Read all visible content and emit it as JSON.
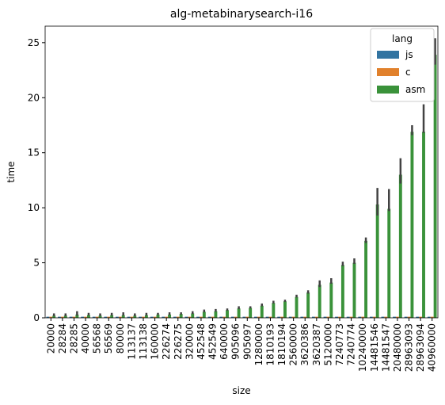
{
  "chart_data": {
    "type": "bar",
    "title": "alg-metabinarysearch-i16",
    "x_label": "size",
    "y_label": "time",
    "categories": [
      "20000",
      "28284",
      "28285",
      "40000",
      "56568",
      "56569",
      "80000",
      "113137",
      "113138",
      "160000",
      "226274",
      "226275",
      "320000",
      "452548",
      "452549",
      "640000",
      "905096",
      "905097",
      "1280000",
      "1810193",
      "1810194",
      "2560000",
      "3620386",
      "3620387",
      "5120000",
      "7240773",
      "7240774",
      "10240000",
      "14481546",
      "14481547",
      "20480000",
      "28963093",
      "28963094",
      "40960000"
    ],
    "legend_title": "lang",
    "legend_position": "upper right",
    "series": [
      {
        "name": "js",
        "color": "#3274a1",
        "values": [
          0.1,
          0.1,
          0.1,
          0.1,
          0.1,
          0.1,
          0.1,
          0.1,
          0.1,
          0.1,
          0.1,
          0.1,
          0.1,
          0.1,
          0.1,
          0.1,
          0.1,
          0.1,
          0.1,
          0.1,
          0.1,
          0.1,
          0.1,
          0.1,
          0.1,
          0.1,
          0.1,
          0.1,
          0.1,
          0.1,
          0.1,
          0.1,
          0.1,
          0.1
        ]
      },
      {
        "name": "c",
        "color": "#e1812c",
        "values": [
          0.1,
          0.1,
          0.1,
          0.1,
          0.1,
          0.1,
          0.1,
          0.1,
          0.1,
          0.1,
          0.1,
          0.1,
          0.1,
          0.1,
          0.1,
          0.1,
          0.1,
          0.1,
          0.1,
          0.1,
          0.1,
          0.1,
          0.1,
          0.1,
          0.1,
          0.1,
          0.1,
          0.1,
          0.1,
          0.1,
          0.1,
          0.1,
          0.1,
          0.1
        ]
      },
      {
        "name": "asm",
        "color": "#3a923a",
        "values": [
          0.2,
          0.2,
          0.3,
          0.25,
          0.2,
          0.25,
          0.25,
          0.2,
          0.25,
          0.3,
          0.3,
          0.35,
          0.4,
          0.55,
          0.6,
          0.7,
          0.85,
          0.9,
          1.1,
          1.35,
          1.5,
          1.9,
          2.3,
          3.0,
          3.2,
          4.8,
          5.0,
          7.0,
          10.3,
          9.9,
          13.0,
          16.9,
          16.9,
          23.9
        ],
        "ci_low": [
          0.15,
          0.15,
          0.2,
          0.2,
          0.15,
          0.2,
          0.2,
          0.15,
          0.2,
          0.25,
          0.25,
          0.3,
          0.35,
          0.5,
          0.55,
          0.65,
          0.8,
          0.85,
          1.05,
          1.3,
          1.45,
          1.85,
          2.2,
          2.8,
          3.1,
          4.7,
          4.9,
          6.8,
          9.3,
          9.7,
          12.2,
          16.6,
          16.8,
          23.0
        ],
        "ci_high": [
          0.4,
          0.4,
          0.6,
          0.45,
          0.4,
          0.45,
          0.5,
          0.4,
          0.45,
          0.45,
          0.5,
          0.5,
          0.6,
          0.75,
          0.8,
          0.85,
          1.05,
          1.05,
          1.3,
          1.55,
          1.65,
          2.1,
          2.5,
          3.4,
          3.6,
          5.1,
          5.4,
          7.3,
          11.8,
          11.7,
          14.5,
          17.5,
          19.4,
          25.4
        ]
      }
    ],
    "ylim": [
      0,
      26.5
    ],
    "yticks": [
      0,
      5,
      10,
      15,
      20,
      25
    ],
    "grid": false
  }
}
